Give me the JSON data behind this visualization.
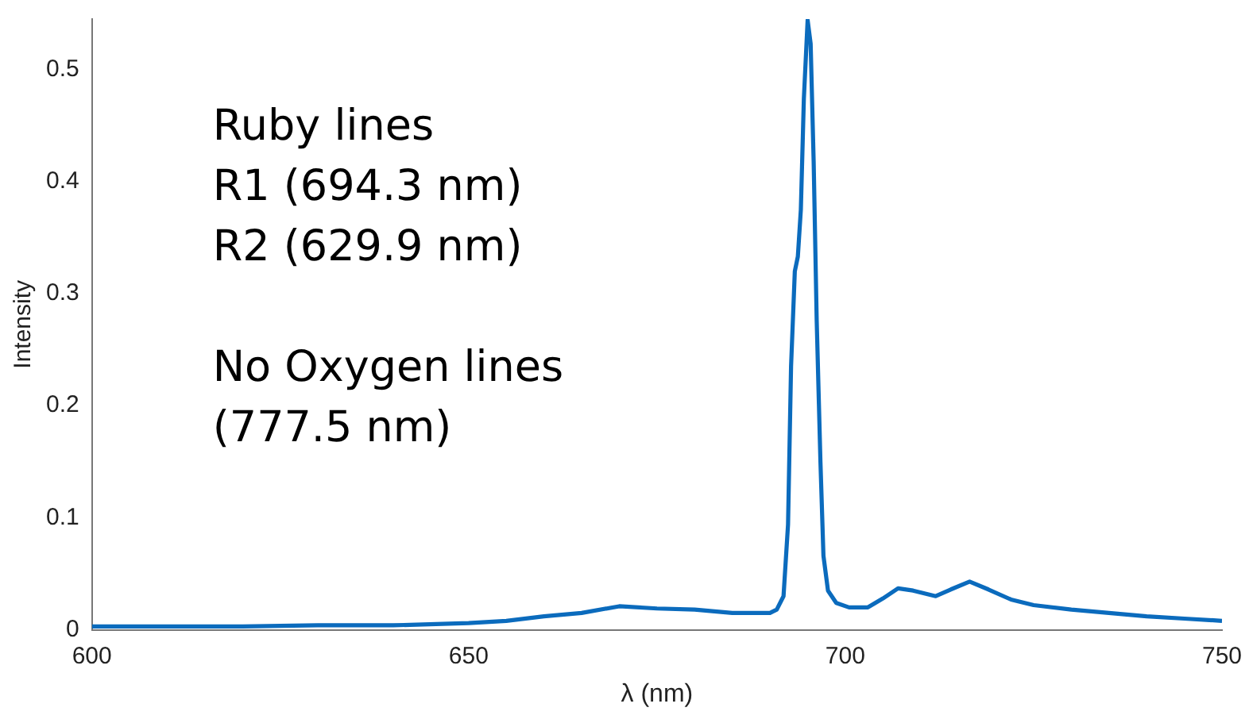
{
  "chart_data": {
    "type": "line",
    "xlabel": "λ (nm)",
    "ylabel": "Intensity",
    "annotations": [
      "Ruby lines",
      "R1 (694.3 nm)",
      "R2 (629.9 nm)",
      "No Oxygen lines",
      "(777.5 nm)"
    ],
    "xlim": [
      600,
      750
    ],
    "xticks": [
      600,
      650,
      700,
      750
    ],
    "ylim": [
      0,
      0.545
    ],
    "yticks": [
      0,
      0.1,
      0.2,
      0.3,
      0.4,
      0.5
    ],
    "grid": false,
    "legend": false,
    "marker": "none",
    "line_style": "solid",
    "series": [
      {
        "color": "#0b6bbd",
        "x": [
          600,
          610,
          620,
          630,
          640,
          650,
          655,
          660,
          665,
          670,
          675,
          680,
          685,
          690,
          690.9,
          691.8,
          692.4,
          692.8,
          693.3,
          693.7,
          694.1,
          694.5,
          695.0,
          695.4,
          695.8,
          696.2,
          696.7,
          697.1,
          697.7,
          698.8,
          700.5,
          703,
          705,
          707,
          709,
          712,
          714,
          716.5,
          719,
          722,
          725,
          730,
          735,
          740,
          745,
          750
        ],
        "values": [
          0.003,
          0.003,
          0.003,
          0.004,
          0.004,
          0.006,
          0.008,
          0.012,
          0.015,
          0.021,
          0.019,
          0.018,
          0.015,
          0.015,
          0.018,
          0.03,
          0.094,
          0.235,
          0.32,
          0.333,
          0.375,
          0.474,
          0.544,
          0.523,
          0.418,
          0.277,
          0.15,
          0.066,
          0.035,
          0.024,
          0.02,
          0.02,
          0.028,
          0.037,
          0.035,
          0.03,
          0.036,
          0.043,
          0.036,
          0.027,
          0.022,
          0.018,
          0.015,
          0.012,
          0.01,
          0.008
        ]
      }
    ]
  }
}
